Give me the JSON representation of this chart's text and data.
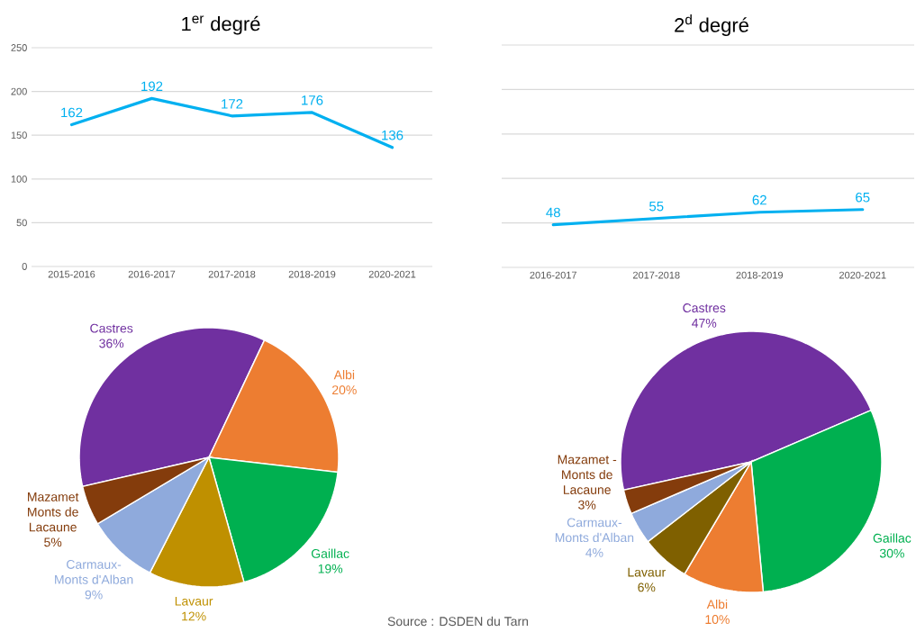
{
  "chart_data": [
    {
      "type": "line",
      "title": "1$^{er}$ degré",
      "categories": [
        "2015-2016",
        "2016-2017",
        "2017-2018",
        "2018-2019",
        "2020-2021"
      ],
      "values": [
        162,
        192,
        172,
        176,
        136
      ],
      "color": "#00b0f0",
      "ylim": [
        0,
        250
      ],
      "yticks": [
        0,
        50,
        100,
        150,
        200,
        250
      ],
      "grid": "y",
      "data_labels": true
    },
    {
      "type": "line",
      "title": "2$^{d}$ degré",
      "categories": [
        "2016-2017",
        "2017-2018",
        "2018-2019",
        "2020-2021"
      ],
      "values": [
        48,
        55,
        62,
        65
      ],
      "color": "#00b0f0",
      "ylim": [
        0,
        250
      ],
      "yticks": [
        0,
        50,
        100,
        150,
        200,
        250
      ],
      "grid": "y",
      "data_labels": true,
      "tick_labels": "x"
    },
    {
      "type": "pie",
      "categories": [
        "Castres",
        "Albi",
        "Gaillac",
        "Lavaur",
        "Carmaux-Monts d'Alban",
        "Mazamet Monts de Lacaune"
      ],
      "values": [
        36,
        20,
        19,
        12,
        9,
        5
      ],
      "value_labels": [
        "36%",
        "20%",
        "19%",
        "12%",
        "9%",
        "5%"
      ],
      "colors": [
        "#7030a0",
        "#ed7d31",
        "#00b050",
        "#bf9000",
        "#8faadc",
        "#843c0c"
      ],
      "annotations": [
        "Source : DSDEN du Tarn"
      ]
    },
    {
      "type": "pie",
      "categories": [
        "Castres",
        "Gaillac",
        "Albi",
        "Lavaur",
        "Carmaux-Monts d'Alban",
        "Mazamet - Monts de Lacaune"
      ],
      "values": [
        47,
        30,
        10,
        6,
        4,
        3
      ],
      "value_labels": [
        "47%",
        "30%",
        "10%",
        "6%",
        "4%",
        "3%"
      ],
      "colors": [
        "#7030a0",
        "#00b050",
        "#ed7d31",
        "#7f6000",
        "#8faadc",
        "#843c0c"
      ]
    }
  ]
}
